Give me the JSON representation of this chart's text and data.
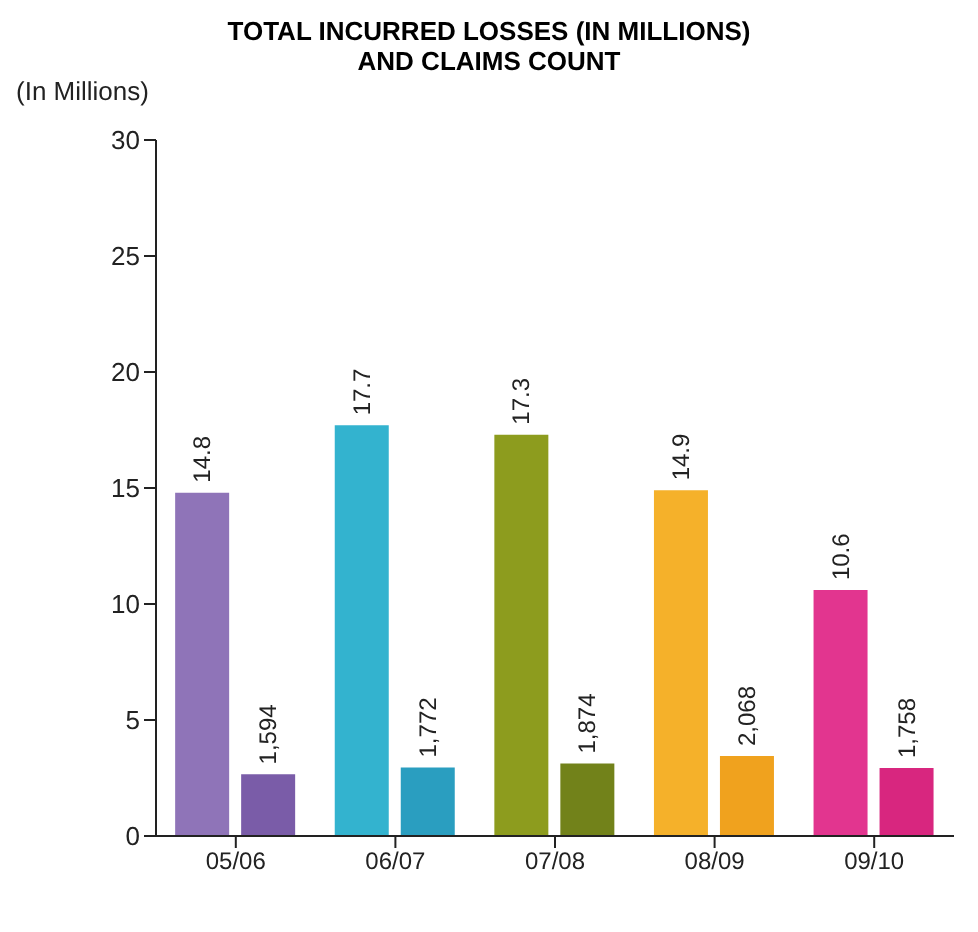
{
  "chart_data": {
    "type": "bar",
    "title": "TOTAL INCURRED LOSSES (IN MILLIONS) AND CLAIMS COUNT",
    "ylabel": "(In Millions)",
    "categories": [
      "05/06",
      "06/07",
      "07/08",
      "08/09",
      "09/10"
    ],
    "series": [
      {
        "type": "bar",
        "colors": [
          "#8f74b8",
          "#33b3cf",
          "#8d9c1e",
          "#f5b12a",
          "#e2358f"
        ],
        "values": [
          14.8,
          17.7,
          17.3,
          14.9,
          10.6
        ],
        "value_labels": [
          "14.8",
          "17.7",
          "17.3",
          "14.9",
          "10.6"
        ]
      },
      {
        "type": "bar",
        "axis": "y2",
        "colors": [
          "#7a5ca8",
          "#2a9ec0",
          "#72821a",
          "#f0a21e",
          "#d8267f"
        ],
        "values": [
          1594,
          1772,
          1874,
          2068,
          1758
        ],
        "value_labels": [
          "1,594",
          "1,772",
          "1,874",
          "2,068",
          "1,758"
        ]
      }
    ],
    "ylim": [
      0,
      30
    ],
    "yticks": [
      0,
      5,
      10,
      15,
      20,
      25,
      30
    ],
    "y2lim": [
      0,
      18000
    ],
    "grid": false,
    "legend": false
  }
}
